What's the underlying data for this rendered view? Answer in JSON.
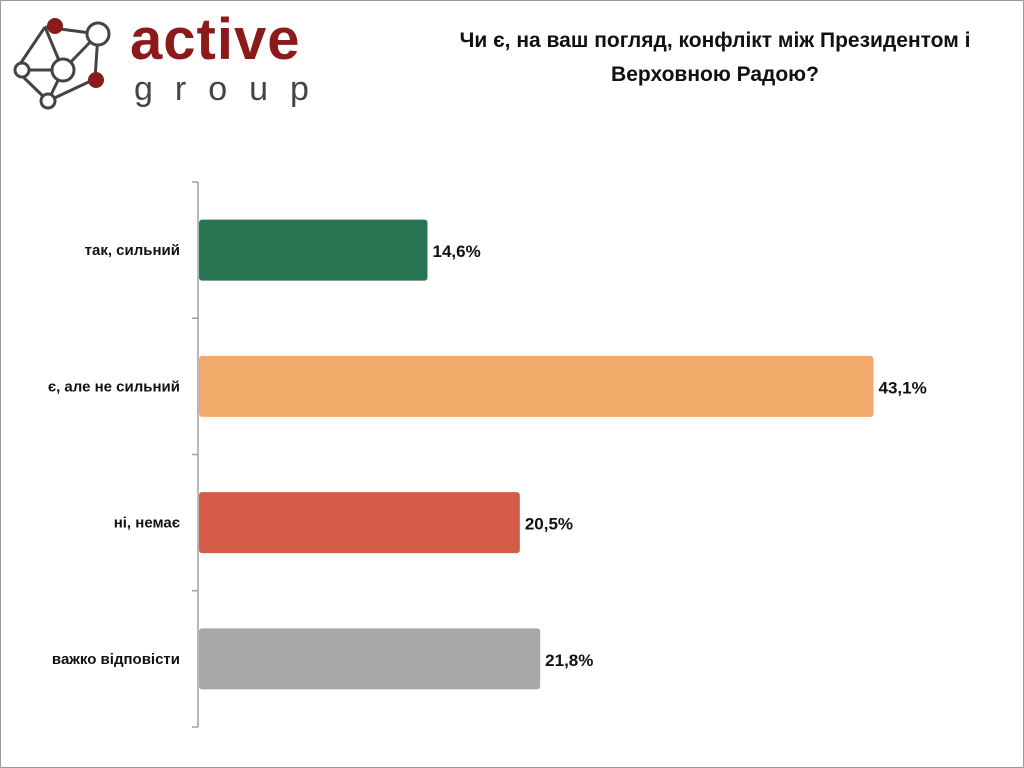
{
  "logo": {
    "word1": "active",
    "word2": "group",
    "brand_color": "#8b1a1a"
  },
  "chart_data": {
    "type": "bar",
    "orientation": "horizontal",
    "title": "Чи є, на ваш погляд, конфлікт між Президентом і Верховною Радою?",
    "categories": [
      "так, сильний",
      "є, але не сильний",
      "ні, немає",
      "важко відповісти"
    ],
    "values": [
      14.6,
      43.1,
      20.5,
      21.8
    ],
    "labels": [
      "14,6%",
      "43,1%",
      "20,5%",
      "21,8%"
    ],
    "colors": [
      "#277552",
      "#f2aa6a",
      "#d45b48",
      "#a8a8a8"
    ],
    "xlim": [
      0,
      45
    ],
    "xlabel": "",
    "ylabel": "",
    "grid": false
  }
}
